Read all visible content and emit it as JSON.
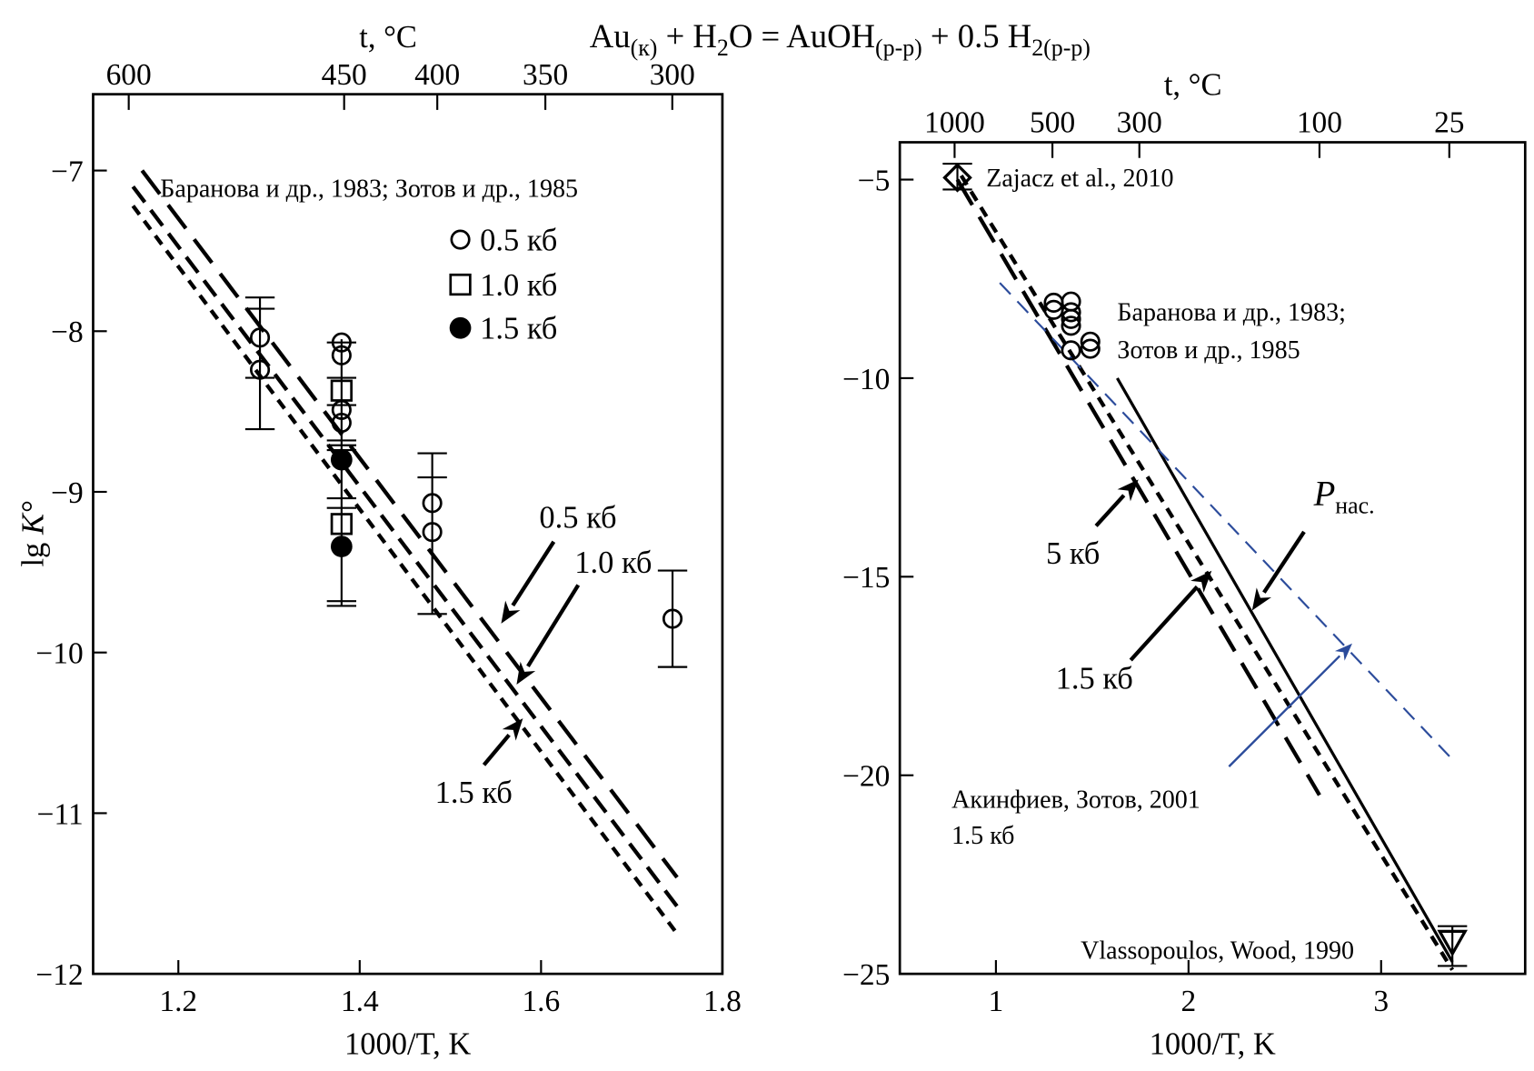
{
  "title_parts": [
    {
      "text": "Au",
      "sub": false
    },
    {
      "text": "(к)",
      "sub": true
    },
    {
      "text": " + H",
      "sub": false
    },
    {
      "text": "2",
      "sub": true
    },
    {
      "text": "O = AuOH",
      "sub": false
    },
    {
      "text": "(р-р)",
      "sub": true
    },
    {
      "text": " + 0.5 H",
      "sub": false
    },
    {
      "text": "2(р-р)",
      "sub": true
    }
  ],
  "chart_data": [
    {
      "type": "scatter",
      "panel": "left",
      "xlabel": "1000/T, K",
      "ylabel": "lg K°",
      "top_axis_label": "t, °C",
      "xlim": [
        1.106,
        1.8
      ],
      "ylim": [
        -12,
        -6.525
      ],
      "xticks": [
        1.2,
        1.4,
        1.6,
        1.8
      ],
      "xtick_labels": [
        "1.2",
        "1.4",
        "1.6",
        "1.8"
      ],
      "yticks": [
        -7,
        -8,
        -9,
        -10,
        -11,
        -12
      ],
      "ytick_labels": [
        "−7",
        "−8",
        "−9",
        "−10",
        "−11",
        "−12"
      ],
      "top_ticks_c": [
        600,
        450,
        400,
        350,
        300
      ],
      "top_tick_labels": [
        "600",
        "450",
        "400",
        "350",
        "300"
      ],
      "series": [
        {
          "name": "0.5 кб",
          "marker": "circle",
          "points": [
            [
              1.29,
              -8.04
            ],
            [
              1.29,
              -8.24
            ],
            [
              1.38,
              -8.07
            ],
            [
              1.38,
              -8.15
            ],
            [
              1.38,
              -8.49
            ],
            [
              1.38,
              -8.57
            ],
            [
              1.48,
              -9.07
            ],
            [
              1.48,
              -9.25
            ],
            [
              1.745,
              -9.79
            ]
          ]
        },
        {
          "name": "1.0 кб",
          "marker": "square",
          "points": [
            [
              1.38,
              -8.37
            ],
            [
              1.38,
              -9.2
            ]
          ]
        },
        {
          "name": "1.5 кб",
          "marker": "filled-circle",
          "points": [
            [
              1.38,
              -8.8
            ],
            [
              1.38,
              -9.34
            ]
          ]
        }
      ],
      "error_bars": [
        {
          "x": 1.29,
          "y1": -7.79,
          "y2": -8.61,
          "caps": [
            -7.79,
            -7.86,
            -8.29,
            -8.61
          ]
        },
        {
          "x": 1.38,
          "y1": -8.05,
          "y2": -9.71,
          "caps": [
            -8.07,
            -8.29,
            -8.46,
            -8.68,
            -8.71,
            -8.74,
            -9.04,
            -9.1,
            -9.68,
            -9.71
          ]
        },
        {
          "x": 1.48,
          "y1": -8.76,
          "y2": -9.76,
          "caps": [
            -8.76,
            -8.91,
            -9.76
          ]
        },
        {
          "x": 1.745,
          "y1": -9.49,
          "y2": -10.09,
          "caps": [
            -9.49,
            -10.09
          ]
        }
      ],
      "lines": [
        {
          "name": "0.5 кб",
          "style": "long-dash",
          "points": [
            [
              1.16,
              -7.0
            ],
            [
              1.75,
              -11.4
            ]
          ]
        },
        {
          "name": "1.0 кб",
          "style": "medium-dash",
          "points": [
            [
              1.15,
              -7.1
            ],
            [
              1.75,
              -11.58
            ]
          ]
        },
        {
          "name": "1.5 кб",
          "style": "short-dash",
          "points": [
            [
              1.15,
              -7.22
            ],
            [
              1.75,
              -11.75
            ]
          ]
        }
      ],
      "legend": {
        "placement": "top-right",
        "entries": [
          {
            "marker": "circle",
            "label": "0.5 кб",
            "pos": [
              1.511,
              -7.43
            ]
          },
          {
            "marker": "square",
            "label": "1.0 кб",
            "pos": [
              1.511,
              -7.71
            ]
          },
          {
            "marker": "filled-circle",
            "label": "1.5 кб",
            "pos": [
              1.511,
              -7.98
            ]
          }
        ]
      },
      "annotations": [
        {
          "text": "Баранова и др., 1983; Зотов и др., 1985",
          "pos": [
            1.18,
            -7.11
          ],
          "size": "small"
        },
        {
          "text": "0.5 кб",
          "pos": [
            1.598,
            -9.17
          ],
          "size": "large"
        },
        {
          "text": "1.0 кб",
          "pos": [
            1.637,
            -9.45
          ],
          "size": "large"
        },
        {
          "text": "1.5 кб",
          "pos": [
            1.483,
            -10.88
          ],
          "size": "large"
        }
      ],
      "arrows": [
        {
          "from": [
            1.614,
            -9.31
          ],
          "to": [
            1.556,
            -9.82
          ],
          "color": "#000000"
        },
        {
          "from": [
            1.641,
            -9.58
          ],
          "to": [
            1.573,
            -10.2
          ],
          "color": "#000000"
        },
        {
          "from": [
            1.537,
            -10.7
          ],
          "to": [
            1.58,
            -10.41
          ],
          "color": "#000000"
        }
      ]
    },
    {
      "type": "scatter",
      "panel": "right",
      "xlabel": "1000/T, K",
      "top_axis_label": "t, °C",
      "xlim": [
        0.501,
        3.748
      ],
      "ylim": [
        -25,
        -4.06
      ],
      "xticks": [
        1,
        2,
        3
      ],
      "xtick_labels": [
        "1",
        "2",
        "3"
      ],
      "yticks": [
        -5,
        -10,
        -15,
        -20,
        -25
      ],
      "ytick_labels": [
        "−5",
        "−10",
        "−15",
        "−20",
        "−25"
      ],
      "top_ticks_c": [
        1000,
        500,
        300,
        100,
        25
      ],
      "top_tick_labels": [
        "1000",
        "500",
        "300",
        "100",
        "25"
      ],
      "series": [
        {
          "name": "Zajacz et al., 2010",
          "marker": "diamond",
          "points": [
            [
              0.8,
              -4.95
            ]
          ]
        },
        {
          "name": "Баранова и др., 1983; Зотов и др., 1985",
          "marker": "circle",
          "points": [
            [
              1.3,
              -8.1
            ],
            [
              1.3,
              -8.28
            ],
            [
              1.39,
              -8.07
            ],
            [
              1.39,
              -8.34
            ],
            [
              1.39,
              -8.51
            ],
            [
              1.39,
              -8.68
            ],
            [
              1.39,
              -9.3
            ],
            [
              1.49,
              -9.08
            ],
            [
              1.49,
              -9.26
            ]
          ]
        },
        {
          "name": "Vlassopoulos, Wood, 1990",
          "marker": "triangle-down",
          "points": [
            [
              3.37,
              -24.2
            ]
          ]
        }
      ],
      "error_bars": [
        {
          "x": 0.8,
          "y1": -4.6,
          "y2": -5.25,
          "caps": [
            -4.6,
            -5.25
          ]
        },
        {
          "x": 3.37,
          "y1": -23.8,
          "y2": -24.8,
          "caps": [
            -23.8,
            -24.8
          ]
        }
      ],
      "lines": [
        {
          "name": "5 кб",
          "style": "long-dash",
          "points": [
            [
              0.8,
              -5.0
            ],
            [
              2.68,
              -20.5
            ]
          ]
        },
        {
          "name": "1.5 кб",
          "style": "short-dash",
          "points": [
            [
              0.82,
              -4.9
            ],
            [
              3.37,
              -24.9
            ]
          ]
        },
        {
          "name": "Pнас.",
          "style": "solid",
          "points": [
            [
              1.63,
              -10.0
            ],
            [
              3.37,
              -24.7
            ]
          ]
        },
        {
          "name": "Акинфиев, Зотов, 2001 1.5 кб",
          "style": "blue-dash",
          "color": "#2b4b9b",
          "points": [
            [
              1.02,
              -7.6
            ],
            [
              3.37,
              -19.6
            ]
          ]
        }
      ],
      "annotations": [
        {
          "text": "Zajacz et al., 2010",
          "pos": [
            0.95,
            -4.95
          ],
          "size": "small"
        },
        {
          "text": "Баранова и др., 1983;",
          "pos": [
            1.63,
            -8.33
          ],
          "size": "small"
        },
        {
          "text": "Зотов и др., 1985",
          "pos": [
            1.63,
            -9.27
          ],
          "size": "small"
        },
        {
          "text": "5 кб",
          "pos": [
            1.26,
            -14.45
          ],
          "size": "large"
        },
        {
          "text": "1.5 кб",
          "pos": [
            1.31,
            -17.6
          ],
          "size": "large"
        },
        {
          "text": "Акинфиев, Зотов, 2001",
          "pos": [
            0.77,
            -20.6
          ],
          "size": "small"
        },
        {
          "text": "1.5 кб",
          "pos": [
            0.77,
            -21.5
          ],
          "size": "small"
        },
        {
          "text": "Vlassopoulos, Wood, 1990",
          "pos": [
            1.44,
            -24.4
          ],
          "size": "small"
        }
      ],
      "psat_label": {
        "main": "P",
        "sub": "нас.",
        "pos": [
          2.65,
          -13.2
        ]
      },
      "arrows": [
        {
          "from": [
            1.52,
            -13.72
          ],
          "to": [
            1.74,
            -12.55
          ],
          "color": "#000000"
        },
        {
          "from": [
            1.7,
            -17.1
          ],
          "to": [
            2.12,
            -14.85
          ],
          "color": "#000000"
        },
        {
          "from": [
            2.6,
            -13.87
          ],
          "to": [
            2.33,
            -15.85
          ],
          "color": "#000000"
        },
        {
          "from": [
            2.21,
            -19.78
          ],
          "to": [
            2.85,
            -16.68
          ],
          "color": "#2b4b9b"
        }
      ]
    }
  ]
}
